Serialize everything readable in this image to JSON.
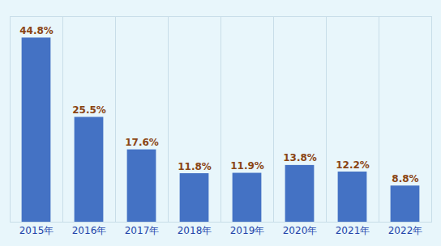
{
  "chart_data": {
    "type": "bar",
    "categories": [
      "2015年",
      "2016年",
      "2017年",
      "2018年",
      "2019年",
      "2020年",
      "2021年",
      "2022年"
    ],
    "values": [
      44.8,
      25.5,
      17.6,
      11.8,
      11.9,
      13.8,
      12.2,
      8.8
    ],
    "value_labels": [
      "44.8%",
      "25.5%",
      "17.6%",
      "11.8%",
      "11.9%",
      "13.8%",
      "12.2%",
      "8.8%"
    ],
    "color": "#4472c4",
    "ylim": [
      0,
      50
    ],
    "grid": true,
    "data_labels": true,
    "tick_labels": "x"
  }
}
